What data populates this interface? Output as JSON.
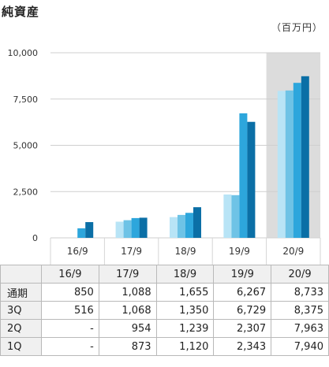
{
  "title": "純資産",
  "unit_label": "（百万円）",
  "colors": {
    "1Q": "#b8e4f6",
    "2Q": "#6ec3e6",
    "3Q": "#2da6dc",
    "通期": "#0b6fa6",
    "highlight": "#dcdcdc",
    "grid": "#cfcfcf"
  },
  "chart_data": {
    "type": "bar",
    "categories": [
      "16/9",
      "17/9",
      "18/9",
      "19/9",
      "20/9"
    ],
    "series": [
      {
        "name": "1Q",
        "values": [
          null,
          873,
          1120,
          2343,
          7940
        ]
      },
      {
        "name": "2Q",
        "values": [
          null,
          954,
          1239,
          2307,
          7963
        ]
      },
      {
        "name": "3Q",
        "values": [
          516,
          1068,
          1350,
          6729,
          8375
        ]
      },
      {
        "name": "通期",
        "values": [
          850,
          1088,
          1655,
          6267,
          8733
        ]
      }
    ],
    "ylim": [
      0,
      10000
    ],
    "yticks": [
      0,
      2500,
      5000,
      7500,
      10000
    ],
    "ytick_labels": [
      "0",
      "2,500",
      "5,000",
      "7,500",
      "10,000"
    ],
    "highlight_category": "20/9",
    "grid": true
  },
  "table": {
    "columns": [
      "16/9",
      "17/9",
      "18/9",
      "19/9",
      "20/9"
    ],
    "rows": [
      {
        "label": "通期",
        "values": [
          "850",
          "1,088",
          "1,655",
          "6,267",
          "8,733"
        ]
      },
      {
        "label": "3Q",
        "values": [
          "516",
          "1,068",
          "1,350",
          "6,729",
          "8,375"
        ]
      },
      {
        "label": "2Q",
        "values": [
          "-",
          "954",
          "1,239",
          "2,307",
          "7,963"
        ]
      },
      {
        "label": "1Q",
        "values": [
          "-",
          "873",
          "1,120",
          "2,343",
          "7,940"
        ]
      }
    ]
  }
}
